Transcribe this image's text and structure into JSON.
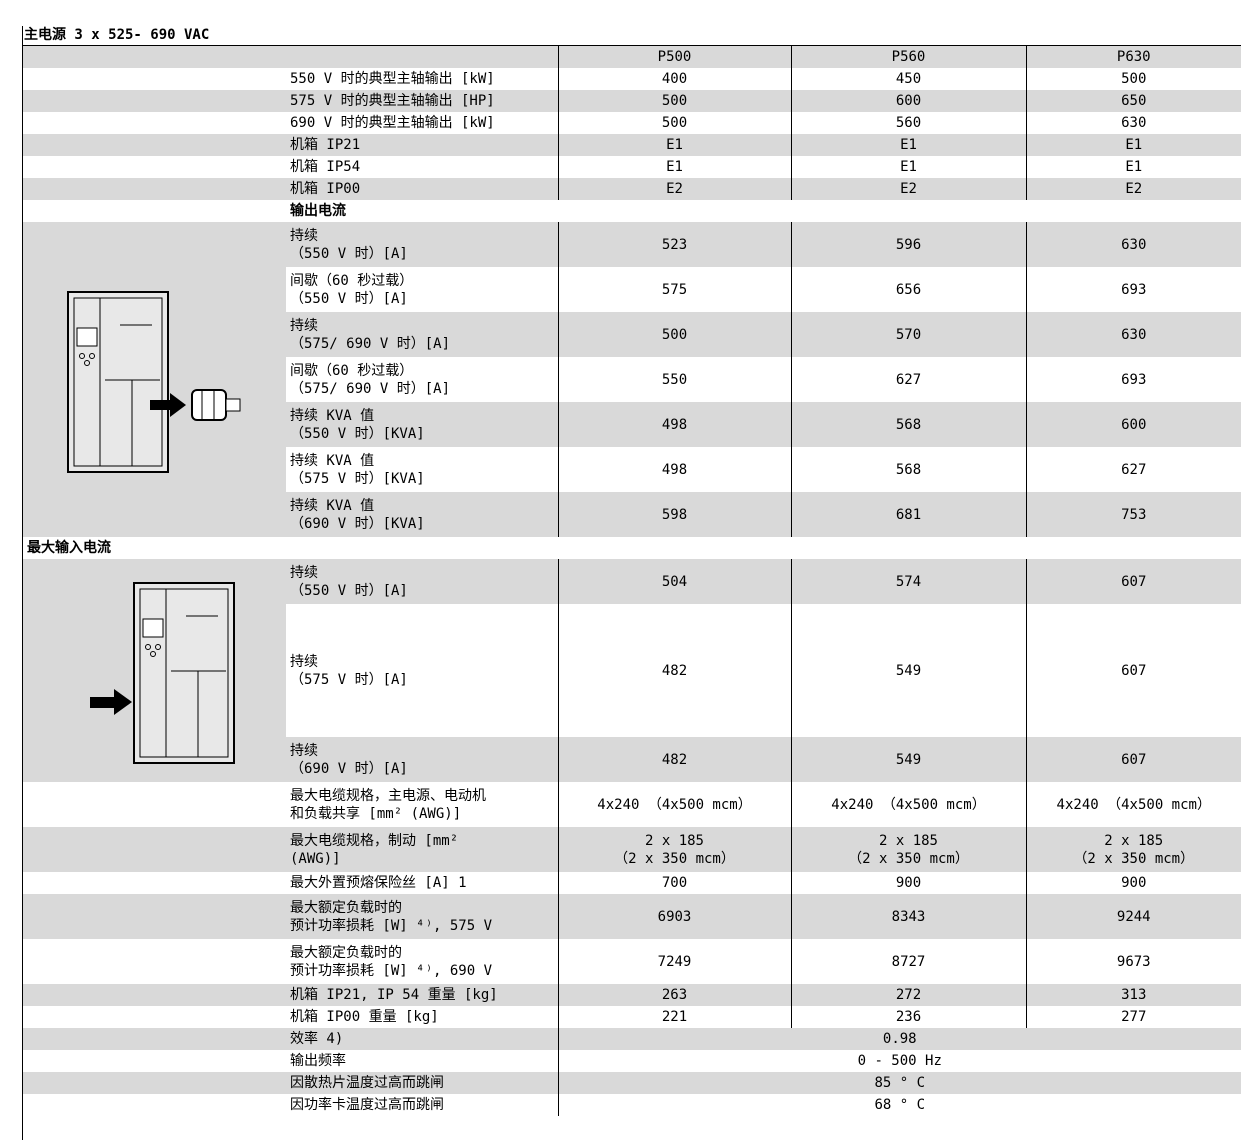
{
  "title": "主电源 3 x 525- 690 VAC",
  "columns": [
    "P500",
    "P560",
    "P630"
  ],
  "rated": {
    "rows": [
      {
        "label": "550 V 时的典型主轴输出 [kW]",
        "values": [
          400,
          450,
          500
        ]
      },
      {
        "label": "575 V 时的典型主轴输出 [HP]",
        "values": [
          500,
          600,
          650
        ]
      },
      {
        "label": "690 V 时的典型主轴输出 [kW]",
        "values": [
          500,
          560,
          630
        ]
      },
      {
        "label": "机箱 IP21",
        "values": [
          "E1",
          "E1",
          "E1"
        ]
      },
      {
        "label": "机箱 IP54",
        "values": [
          "E1",
          "E1",
          "E1"
        ]
      },
      {
        "label": "机箱 IP00",
        "values": [
          "E2",
          "E2",
          "E2"
        ]
      }
    ]
  },
  "output_current": {
    "heading": "输出电流",
    "rows": [
      {
        "label": [
          "持续",
          "（550 V 时）[A]"
        ],
        "values": [
          523,
          596,
          630
        ]
      },
      {
        "label": [
          "间歇（60 秒过载）",
          "（550 V 时）[A]"
        ],
        "values": [
          575,
          656,
          693
        ]
      },
      {
        "label": [
          "持续",
          "（575/ 690 V 时）[A]"
        ],
        "values": [
          500,
          570,
          630
        ]
      },
      {
        "label": [
          "间歇（60 秒过载）",
          "（575/ 690 V 时）[A]"
        ],
        "values": [
          550,
          627,
          693
        ]
      },
      {
        "label": [
          "持续 KVA 值",
          "（550 V 时）[KVA]"
        ],
        "values": [
          498,
          568,
          600
        ]
      },
      {
        "label": [
          "持续 KVA 值",
          "（575 V 时）[KVA]"
        ],
        "values": [
          498,
          568,
          627
        ]
      },
      {
        "label": [
          "持续 KVA 值",
          "（690 V 时）[KVA]"
        ],
        "values": [
          598,
          681,
          753
        ]
      }
    ]
  },
  "input_current": {
    "heading": "最大输入电流",
    "rows": [
      {
        "label": [
          "持续",
          "（550 V 时）[A]"
        ],
        "values": [
          504,
          574,
          607
        ]
      },
      {
        "label": [
          "持续",
          "（575 V 时）[A]"
        ],
        "values": [
          482,
          549,
          607
        ]
      },
      {
        "label": [
          "持续",
          "（690 V 时）[A]"
        ],
        "values": [
          482,
          549,
          607
        ]
      }
    ]
  },
  "specs": {
    "rows": [
      {
        "label": [
          "最大电缆规格，主电源、电动机",
          "和负载共享 [mm² (AWG)]"
        ],
        "values": [
          "4x240 （4x500 mcm）",
          "4x240 （4x500 mcm）",
          "4x240 （4x500 mcm）"
        ]
      },
      {
        "label": [
          "最大电缆规格，制动 [mm²",
          "(AWG)]"
        ],
        "values": [
          [
            "2 x 185",
            "（2 x 350 mcm）"
          ],
          [
            "2 x 185",
            "（2 x 350 mcm）"
          ],
          [
            "2 x 185",
            "（2 x 350 mcm）"
          ]
        ]
      },
      {
        "label": "最大外置预熔保险丝 [A] 1",
        "values": [
          700,
          900,
          900
        ]
      },
      {
        "label": [
          "最大额定负载时的",
          "预计功率损耗 [W] ⁴⁾, 575 V"
        ],
        "values": [
          6903,
          8343,
          9244
        ]
      },
      {
        "label": [
          "最大额定负载时的",
          "预计功率损耗 [W] ⁴⁾, 690 V"
        ],
        "values": [
          7249,
          8727,
          9673
        ]
      },
      {
        "label": "机箱 IP21, IP 54 重量 [kg]",
        "values": [
          263,
          272,
          313
        ]
      },
      {
        "label": "机箱 IP00 重量 [kg]",
        "values": [
          221,
          236,
          277
        ]
      },
      {
        "label": "效率 4)",
        "value": "0.98"
      },
      {
        "label": "输出频率",
        "value": "0 - 500 Hz"
      },
      {
        "label": "因散热片温度过高而跳闸",
        "value": "85 ° C"
      },
      {
        "label": "因功率卡温度过高而跳闸",
        "value": "68 ° C"
      }
    ]
  }
}
